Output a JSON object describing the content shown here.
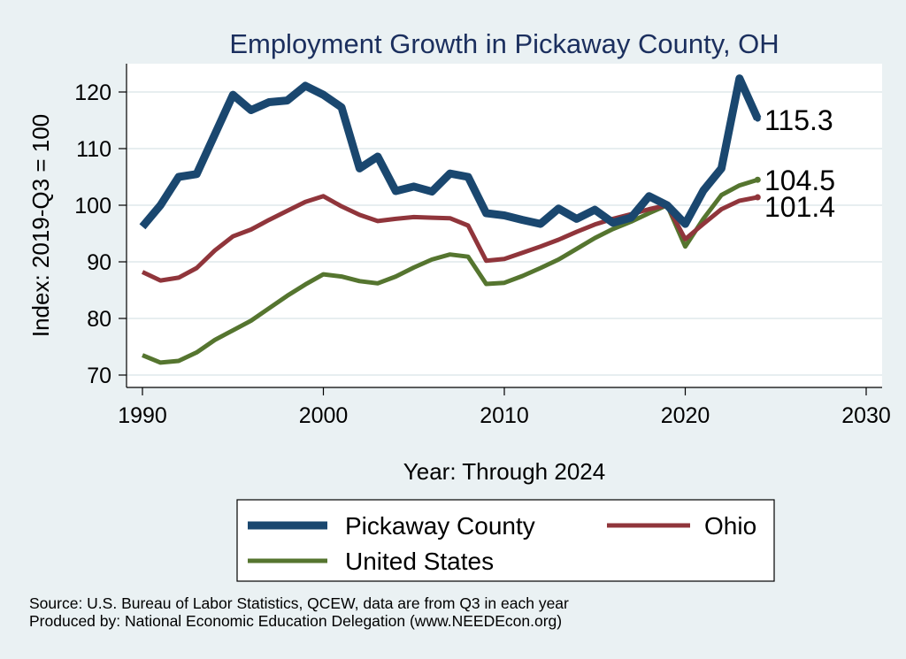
{
  "chart_data": {
    "type": "line",
    "title": "Employment Growth in Pickaway County, OH",
    "xlabel": "Year: Through 2024",
    "ylabel": "Index: 2019-Q3 = 100",
    "xlim": [
      1990,
      2030
    ],
    "ylim": [
      70,
      125
    ],
    "xticks": [
      1990,
      2000,
      2010,
      2020,
      2030
    ],
    "yticks": [
      70,
      80,
      90,
      100,
      110,
      120
    ],
    "grid": true,
    "legend_position": "bottom",
    "x": [
      1990,
      1991,
      1992,
      1993,
      1994,
      1995,
      1996,
      1997,
      1998,
      1999,
      2000,
      2001,
      2002,
      2003,
      2004,
      2005,
      2006,
      2007,
      2008,
      2009,
      2010,
      2011,
      2012,
      2013,
      2014,
      2015,
      2016,
      2017,
      2018,
      2019,
      2020,
      2021,
      2022,
      2023,
      2024
    ],
    "series": [
      {
        "name": "Pickaway  County",
        "color": "#1a476f",
        "end_label": "115.3",
        "values": [
          96.2,
          100.0,
          105.0,
          105.5,
          112.5,
          119.5,
          116.8,
          118.2,
          118.5,
          121.1,
          119.5,
          117.3,
          106.5,
          108.6,
          102.5,
          103.3,
          102.4,
          105.6,
          105.0,
          98.6,
          98.2,
          97.4,
          96.7,
          99.4,
          97.6,
          99.2,
          96.9,
          97.8,
          101.6,
          100.0,
          96.7,
          102.6,
          106.5,
          122.4,
          115.3
        ]
      },
      {
        "name": "Ohio",
        "color": "#90353b",
        "end_label": "101.4",
        "values": [
          88.2,
          86.7,
          87.2,
          88.9,
          92.0,
          94.5,
          95.7,
          97.4,
          99.0,
          100.6,
          101.6,
          99.8,
          98.3,
          97.2,
          97.6,
          97.9,
          97.8,
          97.7,
          96.4,
          90.2,
          90.5,
          91.6,
          92.7,
          93.9,
          95.3,
          96.6,
          97.6,
          98.4,
          99.3,
          100.0,
          94.0,
          96.7,
          99.3,
          100.8,
          101.4
        ]
      },
      {
        "name": "United States",
        "color": "#55752f",
        "end_label": "104.5",
        "values": [
          73.5,
          72.2,
          72.5,
          74.0,
          76.2,
          77.9,
          79.6,
          81.8,
          84.0,
          86.0,
          87.8,
          87.4,
          86.6,
          86.2,
          87.4,
          89.0,
          90.4,
          91.3,
          90.9,
          86.1,
          86.3,
          87.5,
          88.9,
          90.4,
          92.3,
          94.2,
          95.8,
          97.1,
          98.6,
          100.0,
          92.7,
          97.6,
          101.8,
          103.5,
          104.5
        ]
      }
    ],
    "notes": [
      "Source: U.S. Bureau of Labor Statistics, QCEW, data are from Q3 in each year",
      "Produced by: National Economic Education Delegation (www.NEEDEcon.org)"
    ]
  }
}
